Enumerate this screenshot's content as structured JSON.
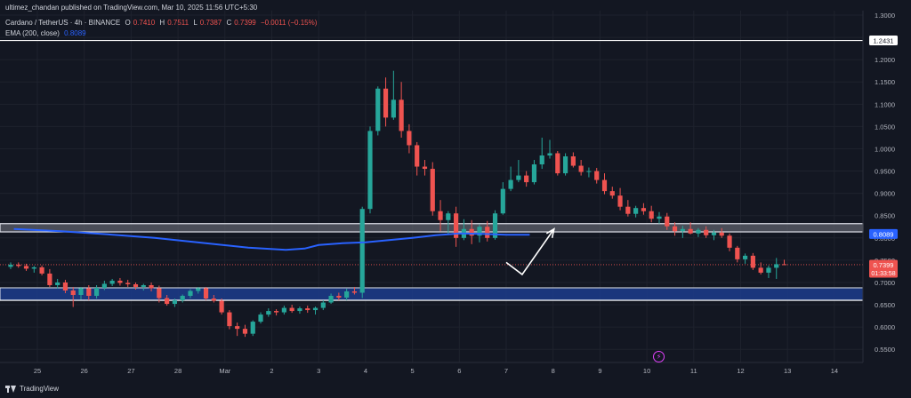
{
  "header": {
    "publisher": "ultimez_chandan published on TradingView.com, Mar 10, 2025 11:56 UTC+5:30",
    "symbol": "Cardano / TetherUS · 4h · BINANCE",
    "ohlc": {
      "o_label": "O",
      "o": "0.7410",
      "h_label": "H",
      "h": "0.7511",
      "l_label": "L",
      "l": "0.7387",
      "c_label": "C",
      "c": "0.7399",
      "change": "−0.0011 (−0.15%)"
    },
    "ema_label": "EMA (200, close)",
    "ema_value": "0.8089"
  },
  "footer": {
    "brand": "TradingView"
  },
  "badge": {
    "icon": "lightning-icon"
  },
  "colors": {
    "background": "#131722",
    "up": "#26a69a",
    "down": "#ef5350",
    "ema": "#2962ff",
    "zone_upper": "#d1d4dc",
    "zone_lower": "#1e3a8a",
    "arrow": "#ffffff"
  },
  "chart_data": {
    "type": "candlestick",
    "y_axis": {
      "ticks": [
        "0.5500",
        "0.6000",
        "0.6500",
        "0.7000",
        "0.7500",
        "0.8000",
        "0.8500",
        "0.9000",
        "0.9500",
        "1.0000",
        "1.0500",
        "1.1000",
        "1.1500",
        "1.2000",
        "1.2500",
        "1.3000"
      ],
      "range": [
        0.53,
        1.3
      ],
      "scale": "linear"
    },
    "x_axis": {
      "ticks": [
        "25",
        "26",
        "27",
        "28",
        "Mar",
        "2",
        "3",
        "4",
        "5",
        "6",
        "7",
        "8",
        "9",
        "10",
        "11",
        "12",
        "13",
        "14"
      ]
    },
    "price_labels": [
      {
        "value": "1.2431",
        "y": 1.2431,
        "style": "white"
      },
      {
        "value": "0.8089",
        "y": 0.8089,
        "style": "blue"
      },
      {
        "value": "0.7399",
        "y": 0.7399,
        "style": "red",
        "countdown": "01:33:58"
      }
    ],
    "horizontal_lines": [
      1.2431,
      0.66
    ],
    "zones": [
      {
        "name": "resistance-zone",
        "from": 0.8135,
        "to": 0.832
      },
      {
        "name": "support-zone",
        "from": 0.66,
        "to": 0.688
      }
    ],
    "ema_200": [
      [
        -0.5,
        0.82
      ],
      [
        0.5,
        0.815
      ],
      [
        1.5,
        0.808
      ],
      [
        2.5,
        0.8
      ],
      [
        3.5,
        0.789
      ],
      [
        4.5,
        0.778
      ],
      [
        5.3,
        0.773
      ],
      [
        5.7,
        0.776
      ],
      [
        6.0,
        0.784
      ],
      [
        6.5,
        0.788
      ],
      [
        7.0,
        0.79
      ],
      [
        7.5,
        0.795
      ],
      [
        8.0,
        0.8
      ],
      [
        8.5,
        0.806
      ],
      [
        9.0,
        0.81
      ],
      [
        9.5,
        0.809
      ],
      [
        10.0,
        0.807
      ],
      [
        10.5,
        0.807
      ]
    ],
    "candles_ohlc": [
      [
        0.735,
        0.745,
        0.73,
        0.74
      ],
      [
        0.74,
        0.745,
        0.733,
        0.737
      ],
      [
        0.737,
        0.742,
        0.726,
        0.731
      ],
      [
        0.731,
        0.737,
        0.722,
        0.734
      ],
      [
        0.734,
        0.738,
        0.716,
        0.72
      ],
      [
        0.72,
        0.73,
        0.69,
        0.694
      ],
      [
        0.694,
        0.708,
        0.686,
        0.7
      ],
      [
        0.7,
        0.706,
        0.676,
        0.682
      ],
      [
        0.682,
        0.69,
        0.645,
        0.672
      ],
      [
        0.672,
        0.69,
        0.662,
        0.687
      ],
      [
        0.687,
        0.694,
        0.66,
        0.67
      ],
      [
        0.67,
        0.694,
        0.664,
        0.688
      ],
      [
        0.688,
        0.704,
        0.683,
        0.697
      ],
      [
        0.697,
        0.708,
        0.692,
        0.704
      ],
      [
        0.704,
        0.71,
        0.693,
        0.699
      ],
      [
        0.699,
        0.706,
        0.69,
        0.696
      ],
      [
        0.696,
        0.7,
        0.684,
        0.69
      ],
      [
        0.69,
        0.697,
        0.682,
        0.694
      ],
      [
        0.694,
        0.7,
        0.68,
        0.687
      ],
      [
        0.687,
        0.693,
        0.655,
        0.665
      ],
      [
        0.665,
        0.672,
        0.648,
        0.652
      ],
      [
        0.652,
        0.664,
        0.645,
        0.66
      ],
      [
        0.66,
        0.673,
        0.655,
        0.67
      ],
      [
        0.67,
        0.685,
        0.665,
        0.681
      ],
      [
        0.681,
        0.69,
        0.675,
        0.687
      ],
      [
        0.687,
        0.69,
        0.66,
        0.664
      ],
      [
        0.664,
        0.672,
        0.655,
        0.659
      ],
      [
        0.659,
        0.664,
        0.628,
        0.633
      ],
      [
        0.633,
        0.638,
        0.595,
        0.602
      ],
      [
        0.602,
        0.61,
        0.58,
        0.596
      ],
      [
        0.596,
        0.605,
        0.578,
        0.585
      ],
      [
        0.585,
        0.615,
        0.58,
        0.612
      ],
      [
        0.612,
        0.633,
        0.608,
        0.628
      ],
      [
        0.628,
        0.642,
        0.623,
        0.636
      ],
      [
        0.636,
        0.64,
        0.626,
        0.633
      ],
      [
        0.633,
        0.648,
        0.628,
        0.643
      ],
      [
        0.643,
        0.65,
        0.632,
        0.636
      ],
      [
        0.636,
        0.646,
        0.63,
        0.642
      ],
      [
        0.642,
        0.648,
        0.632,
        0.638
      ],
      [
        0.638,
        0.646,
        0.628,
        0.643
      ],
      [
        0.643,
        0.66,
        0.638,
        0.655
      ],
      [
        0.655,
        0.675,
        0.652,
        0.67
      ],
      [
        0.67,
        0.677,
        0.66,
        0.666
      ],
      [
        0.666,
        0.686,
        0.66,
        0.68
      ],
      [
        0.68,
        0.69,
        0.673,
        0.677
      ],
      [
        0.677,
        0.87,
        0.665,
        0.865
      ],
      [
        0.865,
        1.05,
        0.855,
        1.04
      ],
      [
        1.04,
        1.14,
        1.03,
        1.135
      ],
      [
        1.135,
        1.16,
        1.05,
        1.07
      ],
      [
        1.07,
        1.175,
        1.065,
        1.11
      ],
      [
        1.11,
        1.15,
        1.025,
        1.04
      ],
      [
        1.04,
        1.055,
        0.99,
        1.008
      ],
      [
        1.008,
        1.015,
        0.94,
        0.96
      ],
      [
        0.96,
        0.975,
        0.94,
        0.955
      ],
      [
        0.955,
        0.97,
        0.85,
        0.86
      ],
      [
        0.86,
        0.885,
        0.815,
        0.84
      ],
      [
        0.84,
        0.86,
        0.808,
        0.855
      ],
      [
        0.855,
        0.87,
        0.78,
        0.8
      ],
      [
        0.8,
        0.842,
        0.795,
        0.82
      ],
      [
        0.82,
        0.84,
        0.786,
        0.805
      ],
      [
        0.805,
        0.83,
        0.79,
        0.825
      ],
      [
        0.825,
        0.838,
        0.792,
        0.8
      ],
      [
        0.8,
        0.862,
        0.796,
        0.855
      ],
      [
        0.855,
        0.925,
        0.852,
        0.91
      ],
      [
        0.91,
        0.96,
        0.905,
        0.93
      ],
      [
        0.93,
        0.975,
        0.925,
        0.94
      ],
      [
        0.94,
        0.95,
        0.915,
        0.925
      ],
      [
        0.925,
        0.975,
        0.92,
        0.965
      ],
      [
        0.965,
        1.025,
        0.955,
        0.985
      ],
      [
        0.985,
        1.02,
        0.978,
        0.99
      ],
      [
        0.99,
        0.995,
        0.94,
        0.945
      ],
      [
        0.945,
        0.99,
        0.94,
        0.983
      ],
      [
        0.983,
        0.992,
        0.958,
        0.962
      ],
      [
        0.962,
        0.975,
        0.94,
        0.948
      ],
      [
        0.948,
        0.958,
        0.936,
        0.95
      ],
      [
        0.95,
        0.957,
        0.922,
        0.93
      ],
      [
        0.93,
        0.945,
        0.898,
        0.905
      ],
      [
        0.905,
        0.915,
        0.888,
        0.895
      ],
      [
        0.895,
        0.912,
        0.862,
        0.87
      ],
      [
        0.87,
        0.885,
        0.848,
        0.854
      ],
      [
        0.854,
        0.872,
        0.846,
        0.867
      ],
      [
        0.867,
        0.878,
        0.852,
        0.86
      ],
      [
        0.86,
        0.872,
        0.835,
        0.843
      ],
      [
        0.843,
        0.858,
        0.832,
        0.848
      ],
      [
        0.848,
        0.856,
        0.818,
        0.826
      ],
      [
        0.826,
        0.835,
        0.805,
        0.815
      ],
      [
        0.815,
        0.827,
        0.8,
        0.82
      ],
      [
        0.82,
        0.835,
        0.808,
        0.81
      ],
      [
        0.81,
        0.822,
        0.802,
        0.818
      ],
      [
        0.818,
        0.826,
        0.8,
        0.806
      ],
      [
        0.806,
        0.818,
        0.795,
        0.812
      ],
      [
        0.812,
        0.822,
        0.8,
        0.805
      ],
      [
        0.805,
        0.81,
        0.77,
        0.778
      ],
      [
        0.778,
        0.782,
        0.745,
        0.752
      ],
      [
        0.752,
        0.765,
        0.742,
        0.76
      ],
      [
        0.76,
        0.766,
        0.728,
        0.733
      ],
      [
        0.733,
        0.745,
        0.718,
        0.722
      ],
      [
        0.722,
        0.738,
        0.71,
        0.733
      ],
      [
        0.733,
        0.755,
        0.708,
        0.741
      ],
      [
        0.741,
        0.751,
        0.739,
        0.74
      ]
    ],
    "arrow_path": [
      [
        10.0,
        0.745
      ],
      [
        10.34,
        0.718
      ],
      [
        11.02,
        0.82
      ],
      [
        10.86,
        0.81
      ],
      [
        11.02,
        0.82
      ],
      [
        10.98,
        0.8
      ]
    ]
  }
}
